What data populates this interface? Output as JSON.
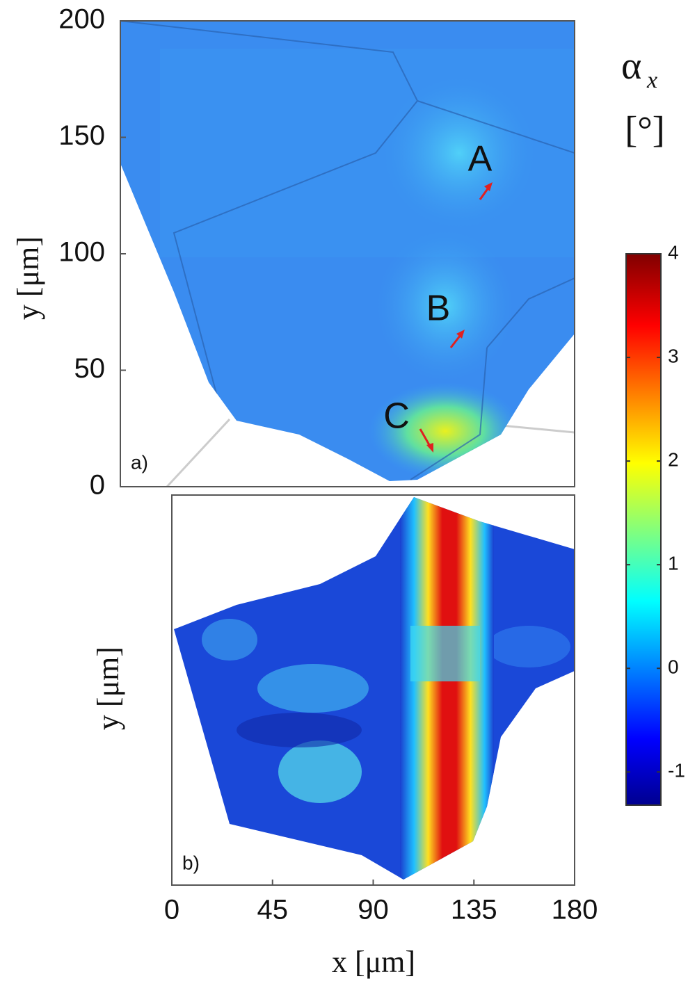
{
  "chart_data": [
    {
      "type": "heatmap",
      "panel_label": "a)",
      "ylabel": "y [μm]",
      "ylim": [
        0,
        200
      ],
      "yticks": [
        0,
        50,
        100,
        150,
        200
      ],
      "annotations": [
        "A",
        "B",
        "C"
      ]
    },
    {
      "type": "heatmap",
      "panel_label": "b)",
      "xlabel": "x [μm]",
      "ylabel": "y [μm]",
      "xlim": [
        0,
        180
      ],
      "xticks": [
        0,
        45,
        90,
        135,
        180
      ]
    },
    {
      "type": "colorbar",
      "title": "α",
      "title_subscript": "x",
      "unit": "[°]",
      "clim": [
        -1.32,
        4
      ],
      "ticks": [
        -1,
        0,
        1,
        2,
        3,
        4
      ]
    }
  ]
}
